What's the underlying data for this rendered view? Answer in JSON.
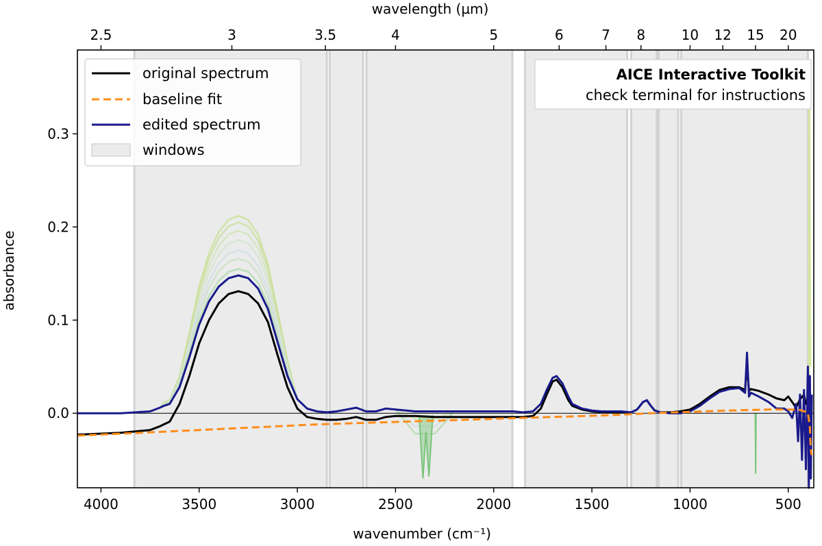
{
  "chart_data": {
    "type": "line",
    "xlabel": "wavenumber (cm⁻¹)",
    "ylabel": "absorbance",
    "top_xlabel": "wavelength (µm)",
    "xlim": [
      4120,
      370
    ],
    "ylim": [
      -0.08,
      0.39
    ],
    "x_ticks": [
      4000,
      3500,
      3000,
      2500,
      2000,
      1500,
      1000,
      500
    ],
    "y_ticks": [
      0.0,
      0.1,
      0.2,
      0.3
    ],
    "y_tick_labels": [
      "0.0",
      "0.1",
      "0.2",
      "0.3"
    ],
    "top_ticks": [
      {
        "um": 2.5,
        "label": "2.5"
      },
      {
        "um": 3,
        "label": "3"
      },
      {
        "um": 3.5,
        "label": "3.5"
      },
      {
        "um": 4,
        "label": "4"
      },
      {
        "um": 5,
        "label": "5"
      },
      {
        "um": 6,
        "label": "6"
      },
      {
        "um": 7,
        "label": "7"
      },
      {
        "um": 8,
        "label": "8"
      },
      {
        "um": 10,
        "label": "10"
      },
      {
        "um": 12,
        "label": "12"
      },
      {
        "um": 15,
        "label": "15"
      },
      {
        "um": 20,
        "label": "20"
      }
    ],
    "windows": [
      [
        3830,
        2850
      ],
      [
        2835,
        2665
      ],
      [
        2648,
        1905
      ],
      [
        1840,
        1320
      ],
      [
        1300,
        1170
      ],
      [
        1160,
        1060
      ],
      [
        1045,
        400
      ]
    ],
    "zero_line": 0.0,
    "legend": {
      "position": "top-left",
      "entries": [
        {
          "label": "original spectrum",
          "color": "#000000",
          "style": "solid"
        },
        {
          "label": "baseline fit",
          "color": "#ff8c1a",
          "style": "dashed"
        },
        {
          "label": "edited spectrum",
          "color": "#1a1a8c",
          "style": "solid"
        },
        {
          "label": "windows",
          "color": "#d9d9d9",
          "style": "patch"
        }
      ]
    },
    "annotation": {
      "title": "AICE Interactive Toolkit",
      "subtitle": "check terminal for instructions",
      "position": "top-right"
    },
    "series": [
      {
        "name": "original spectrum",
        "color": "#000000",
        "style": "solid",
        "x": [
          4120,
          3900,
          3750,
          3700,
          3680,
          3650,
          3600,
          3550,
          3500,
          3450,
          3400,
          3350,
          3300,
          3250,
          3200,
          3150,
          3100,
          3050,
          3000,
          2950,
          2900,
          2850,
          2800,
          2750,
          2700,
          2650,
          2600,
          2550,
          2500,
          2400,
          2300,
          2200,
          2100,
          2000,
          1900,
          1850,
          1800,
          1760,
          1730,
          1700,
          1680,
          1650,
          1620,
          1600,
          1550,
          1500,
          1450,
          1400,
          1350,
          1300,
          1270,
          1240,
          1220,
          1200,
          1180,
          1150,
          1100,
          1050,
          1000,
          950,
          900,
          850,
          800,
          750,
          720,
          710,
          700,
          690,
          650,
          600,
          560,
          520,
          500,
          480,
          460,
          440,
          420,
          410,
          400,
          390,
          380
        ],
        "y": [
          -0.023,
          -0.021,
          -0.018,
          -0.014,
          -0.012,
          -0.009,
          0.01,
          0.04,
          0.075,
          0.1,
          0.118,
          0.128,
          0.131,
          0.128,
          0.118,
          0.098,
          0.062,
          0.028,
          0.005,
          -0.004,
          -0.006,
          -0.007,
          -0.007,
          -0.006,
          -0.004,
          -0.007,
          -0.007,
          -0.004,
          -0.003,
          -0.003,
          -0.004,
          -0.004,
          -0.004,
          -0.004,
          -0.004,
          -0.004,
          -0.003,
          0.005,
          0.02,
          0.034,
          0.036,
          0.028,
          0.014,
          0.008,
          0.004,
          0.002,
          0.001,
          0.001,
          0.001,
          0.001,
          0.004,
          0.012,
          0.014,
          0.008,
          0.003,
          0.001,
          0.001,
          0.002,
          0.004,
          0.01,
          0.018,
          0.025,
          0.028,
          0.028,
          0.025,
          0.052,
          0.024,
          0.026,
          0.024,
          0.02,
          0.016,
          0.014,
          0.018,
          0.012,
          0.006,
          0.015,
          0.02,
          0.01,
          0.015,
          0.018,
          0.012
        ]
      },
      {
        "name": "baseline fit",
        "color": "#ff8c1a",
        "style": "dashed",
        "x": [
          4120,
          3800,
          3500,
          3200,
          2900,
          2600,
          2300,
          2000,
          1700,
          1400,
          1200,
          1000,
          800,
          600,
          450,
          400,
          390,
          385,
          380
        ],
        "y": [
          -0.024,
          -0.021,
          -0.018,
          -0.015,
          -0.012,
          -0.01,
          -0.008,
          -0.006,
          -0.004,
          -0.002,
          0.0,
          0.0015,
          0.003,
          0.004,
          0.004,
          0.001,
          -0.015,
          -0.04,
          -0.045
        ]
      },
      {
        "name": "edited spectrum",
        "color": "#1a1a8c",
        "style": "solid",
        "x": [
          4120,
          3900,
          3750,
          3700,
          3680,
          3650,
          3600,
          3550,
          3500,
          3450,
          3400,
          3350,
          3300,
          3250,
          3200,
          3150,
          3100,
          3050,
          3000,
          2950,
          2900,
          2850,
          2800,
          2750,
          2700,
          2650,
          2600,
          2550,
          2500,
          2400,
          2300,
          2200,
          2100,
          2000,
          1900,
          1850,
          1800,
          1760,
          1730,
          1700,
          1680,
          1650,
          1620,
          1600,
          1550,
          1500,
          1450,
          1400,
          1350,
          1300,
          1270,
          1240,
          1220,
          1200,
          1180,
          1150,
          1100,
          1050,
          1000,
          950,
          900,
          850,
          800,
          750,
          720,
          710,
          700,
          690,
          650,
          600,
          560,
          520,
          500,
          480,
          460,
          450,
          440,
          430,
          420,
          410,
          400,
          395,
          390,
          385,
          380
        ],
        "y": [
          0.0,
          0.0,
          0.002,
          0.006,
          0.008,
          0.01,
          0.028,
          0.06,
          0.095,
          0.12,
          0.136,
          0.145,
          0.148,
          0.145,
          0.134,
          0.112,
          0.076,
          0.04,
          0.015,
          0.005,
          0.002,
          0.001,
          0.002,
          0.004,
          0.006,
          0.002,
          0.002,
          0.005,
          0.004,
          0.002,
          0.002,
          0.002,
          0.002,
          0.002,
          0.002,
          0.001,
          0.002,
          0.01,
          0.025,
          0.038,
          0.04,
          0.032,
          0.018,
          0.01,
          0.005,
          0.003,
          0.002,
          0.002,
          0.002,
          0.001,
          0.004,
          0.012,
          0.014,
          0.008,
          0.003,
          0.001,
          0.0,
          0.0,
          0.002,
          0.008,
          0.016,
          0.023,
          0.026,
          0.027,
          0.022,
          0.065,
          0.018,
          0.022,
          0.018,
          0.012,
          0.005,
          0.005,
          0.002,
          -0.005,
          0.01,
          -0.03,
          0.02,
          -0.05,
          0.025,
          -0.06,
          0.05,
          -0.08,
          0.04,
          -0.07,
          0.02
        ]
      }
    ],
    "ghost_series": [
      {
        "color": "#c5e08a",
        "peak": 0.212
      },
      {
        "color": "#c8de9a",
        "peak": 0.205
      },
      {
        "color": "#cfe3b4",
        "peak": 0.196
      },
      {
        "color": "#d3e3cd",
        "peak": 0.186
      },
      {
        "color": "#cfdde3",
        "peak": 0.175
      },
      {
        "color": "#c8dfc2",
        "peak": 0.166
      },
      {
        "color": "#a9d8a6",
        "peak": 0.155
      }
    ]
  }
}
